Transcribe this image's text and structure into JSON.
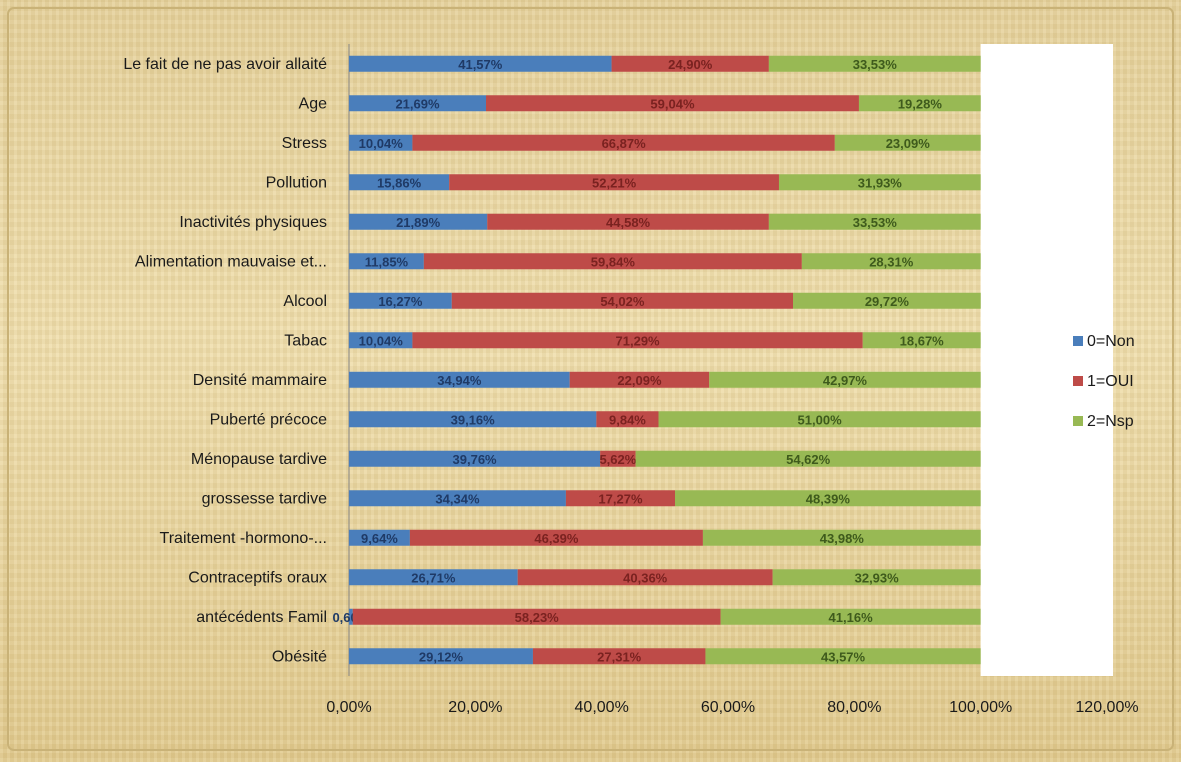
{
  "chart_data": {
    "type": "bar",
    "orientation": "horizontal",
    "stacked": true,
    "categories": [
      "Le fait de ne pas avoir allaité",
      "Age",
      "Stress",
      "Pollution",
      "Inactivités physiques",
      "Alimentation mauvaise et...",
      "Alcool",
      "Tabac",
      "Densité mammaire",
      "Puberté précoce",
      "Ménopause tardive",
      "grossesse tardive",
      "Traitement -hormono-...",
      "Contraceptifs oraux",
      "antécédents Famil",
      "Obésité"
    ],
    "series": [
      {
        "name": "0=Non",
        "color": "#4a7ebb",
        "values": [
          41.57,
          21.69,
          10.04,
          15.86,
          21.89,
          11.85,
          16.27,
          10.04,
          34.94,
          39.16,
          39.76,
          34.34,
          9.64,
          26.71,
          0.6,
          29.12
        ],
        "labels": [
          "41,57%",
          "21,69%",
          "10,04%",
          "15,86%",
          "21,89%",
          "11,85%",
          "16,27%",
          "10,04%",
          "34,94%",
          "39,16%",
          "39,76%",
          "34,34%",
          "9,64%",
          "26,71%",
          "0,60%",
          "29,12%"
        ]
      },
      {
        "name": "1=OUI",
        "color": "#be4b48",
        "values": [
          24.9,
          59.04,
          66.87,
          52.21,
          44.58,
          59.84,
          54.02,
          71.29,
          22.09,
          9.84,
          5.62,
          17.27,
          46.39,
          40.36,
          58.23,
          27.31
        ],
        "labels": [
          "24,90%",
          "59,04%",
          "66,87%",
          "52,21%",
          "44,58%",
          "59,84%",
          "54,02%",
          "71,29%",
          "22,09%",
          "9,84%",
          "5,62%",
          "17,27%",
          "46,39%",
          "40,36%",
          "58,23%",
          "27,31%"
        ]
      },
      {
        "name": "2=Nsp",
        "color": "#98b954",
        "values": [
          33.53,
          19.28,
          23.09,
          31.93,
          33.53,
          28.31,
          29.72,
          18.67,
          42.97,
          51.0,
          54.62,
          48.39,
          43.98,
          32.93,
          41.16,
          43.57
        ],
        "labels": [
          "33,53%",
          "19,28%",
          "23,09%",
          "31,93%",
          "33,53%",
          "28,31%",
          "29,72%",
          "18,67%",
          "42,97%",
          "51,00%",
          "54,62%",
          "48,39%",
          "43,98%",
          "32,93%",
          "41,16%",
          "43,57%"
        ]
      }
    ],
    "xlim": [
      0,
      120
    ],
    "xticks": [
      0,
      20,
      40,
      60,
      80,
      100,
      120
    ],
    "xtick_labels": [
      "0,00%",
      "20,00%",
      "40,00%",
      "60,00%",
      "80,00%",
      "100,00%",
      "120,00%"
    ],
    "grid": false,
    "legend_position": "right",
    "plot_background": "#ffffff"
  }
}
